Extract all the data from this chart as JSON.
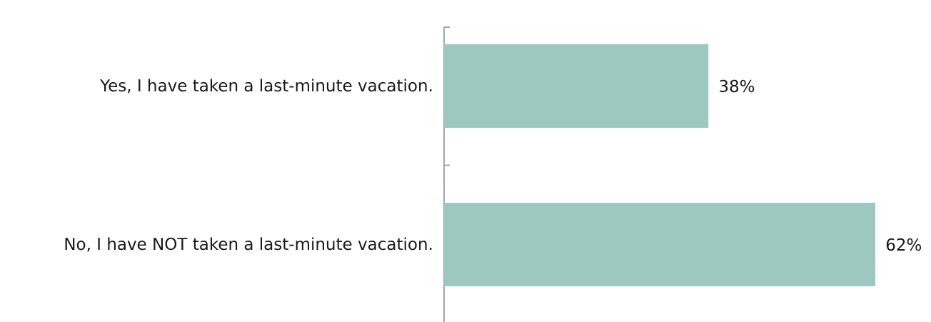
{
  "chart_data": {
    "type": "bar",
    "orientation": "horizontal",
    "categories": [
      "Yes, I have taken a last-minute vacation.",
      "No, I have NOT taken a last-minute vacation."
    ],
    "values": [
      38,
      62
    ],
    "color": "#9dc7c1",
    "value_labels": [
      "38%",
      "62%"
    ]
  }
}
